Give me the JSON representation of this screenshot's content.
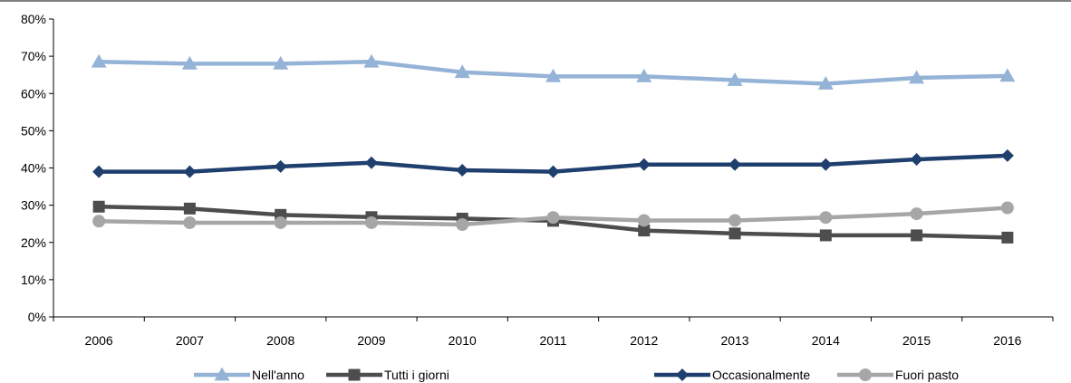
{
  "chart_data": {
    "type": "line",
    "title": "",
    "xlabel": "",
    "ylabel": "",
    "categories": [
      "2006",
      "2007",
      "2008",
      "2009",
      "2010",
      "2011",
      "2012",
      "2013",
      "2014",
      "2015",
      "2016"
    ],
    "y_ticks": [
      "0%",
      "10%",
      "20%",
      "30%",
      "40%",
      "50%",
      "60%",
      "70%",
      "80%"
    ],
    "ylim": [
      0,
      80
    ],
    "grid": false,
    "legend_position": "bottom",
    "series": [
      {
        "name": "Nell'anno",
        "color": "#95b3d7",
        "marker": "triangle",
        "values": [
          68.5,
          68.0,
          68.0,
          68.5,
          65.7,
          64.6,
          64.6,
          63.6,
          62.6,
          64.2,
          64.7
        ]
      },
      {
        "name": "Tutti i giorni",
        "color": "#4d4d4d",
        "marker": "square",
        "values": [
          29.6,
          29.1,
          27.4,
          26.8,
          26.4,
          25.8,
          23.2,
          22.4,
          21.9,
          21.9,
          21.3
        ]
      },
      {
        "name": "Occasionalmente",
        "color": "#1f3f6e",
        "marker": "diamond",
        "values": [
          39.0,
          39.0,
          40.4,
          41.4,
          39.4,
          39.0,
          40.9,
          40.9,
          40.9,
          42.3,
          43.3
        ]
      },
      {
        "name": "Fuori pasto",
        "color": "#a6a6a6",
        "marker": "circle",
        "values": [
          25.7,
          25.3,
          25.3,
          25.3,
          24.8,
          26.7,
          25.9,
          25.9,
          26.7,
          27.7,
          29.3
        ]
      }
    ]
  }
}
